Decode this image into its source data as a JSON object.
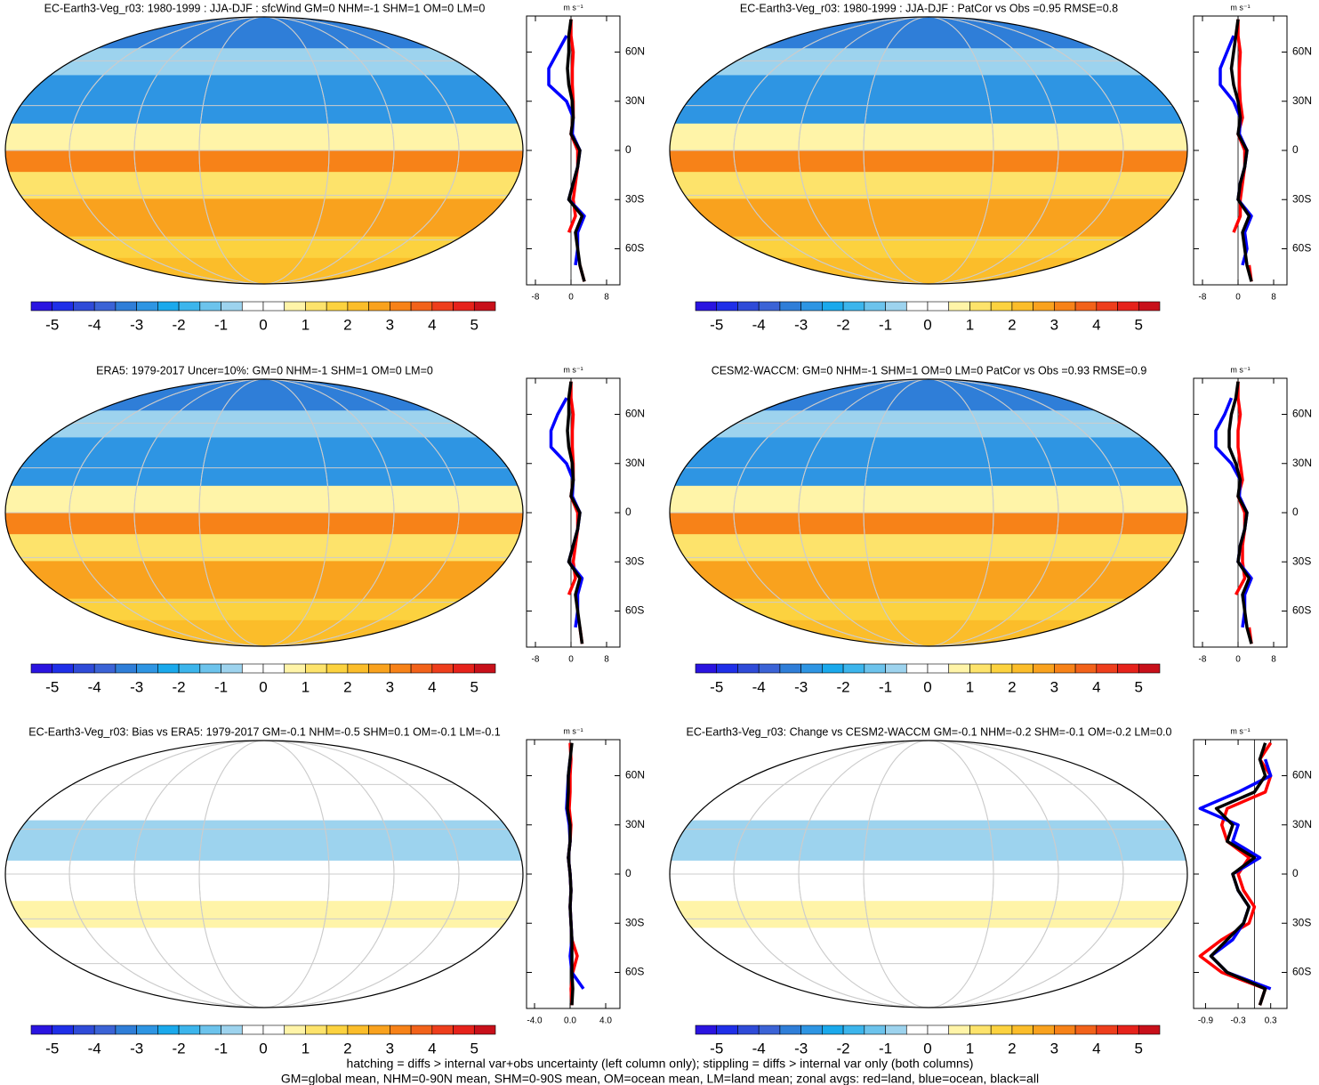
{
  "chart_data": [
    {
      "type": "map",
      "title": "EC-Earth3-Veg_r03: 1980-1999 : JJA-DJF : sfcWind GM=0 NHM=-1 SHM=1 OM=0 LM=0",
      "colorbar_lim": [
        -5.5,
        5.5
      ],
      "colorbar_ticks": [
        -5,
        -4,
        -3,
        -2,
        -1,
        0,
        1,
        2,
        3,
        4,
        5
      ],
      "colorbar_colors": [
        "#2a14e0",
        "#1f2fe8",
        "#2f4bd8",
        "#3b63d6",
        "#2f7ed8",
        "#2e95e3",
        "#1aa9ec",
        "#3cb5ec",
        "#6cc3ec",
        "#9dd3ee",
        "#ffffff",
        "#ffffff",
        "#fff4a8",
        "#fde36b",
        "#fcd23f",
        "#fbbd2a",
        "#f9a21e",
        "#f78218",
        "#f2621a",
        "#ee3e1c",
        "#e6221b",
        "#c8101a"
      ]
    },
    {
      "type": "line",
      "unit": "m s⁻¹",
      "y": [
        -80,
        -70,
        -60,
        -50,
        -40,
        -30,
        -20,
        -10,
        0,
        10,
        20,
        30,
        40,
        50,
        60,
        70,
        80
      ],
      "ylim": [
        -82,
        82
      ],
      "yticks": [
        {
          "value": 60,
          "label": "60N"
        },
        {
          "value": 30,
          "label": "30N"
        },
        0,
        {
          "value": -30,
          "label": "30S"
        },
        {
          "value": -60,
          "label": "60S"
        }
      ],
      "xlim": [
        -10,
        11
      ],
      "xticks": [
        -8,
        0,
        8
      ],
      "series": [
        {
          "color": "#ff0000",
          "values": [
            3,
            2,
            null,
            -0.5,
            1,
            0.5,
            1,
            1.5,
            1.5,
            0,
            0.5,
            0.5,
            0.3,
            0.3,
            0.5,
            0,
            0
          ]
        },
        {
          "color": "#0000ff",
          "values": [
            null,
            1,
            1.5,
            1.5,
            3,
            -0.5,
            0.5,
            1.5,
            2,
            0.3,
            0.5,
            -1,
            -5,
            -5,
            -3,
            -1,
            null
          ]
        },
        {
          "color": "#000000",
          "values": [
            3,
            2,
            1.5,
            1,
            2.5,
            -0.5,
            0.5,
            1.5,
            2,
            0,
            0.5,
            0.3,
            -0.5,
            -0.8,
            -0.5,
            -0.5,
            0
          ]
        }
      ]
    },
    {
      "type": "map",
      "title": "EC-Earth3-Veg_r03: 1980-1999 : JJA-DJF : PatCor vs Obs =0.95 RMSE=0.8",
      "colorbar_lim": [
        -5.5,
        5.5
      ],
      "colorbar_ticks": [
        -5,
        -4,
        -3,
        -2,
        -1,
        0,
        1,
        2,
        3,
        4,
        5
      ],
      "colorbar_colors": [
        "#2a14e0",
        "#1f2fe8",
        "#2f4bd8",
        "#3b63d6",
        "#2f7ed8",
        "#2e95e3",
        "#1aa9ec",
        "#3cb5ec",
        "#6cc3ec",
        "#9dd3ee",
        "#ffffff",
        "#ffffff",
        "#fff4a8",
        "#fde36b",
        "#fcd23f",
        "#fbbd2a",
        "#f9a21e",
        "#f78218",
        "#f2621a",
        "#ee3e1c",
        "#e6221b",
        "#c8101a"
      ]
    },
    {
      "type": "line",
      "unit": "m s⁻¹",
      "y": [
        -80,
        -70,
        -60,
        -50,
        -40,
        -30,
        -20,
        -10,
        0,
        10,
        20,
        30,
        40,
        50,
        60,
        70,
        80
      ],
      "ylim": [
        -82,
        82
      ],
      "yticks": [
        {
          "value": 60,
          "label": "60N"
        },
        {
          "value": 30,
          "label": "30N"
        },
        0,
        {
          "value": -30,
          "label": "30S"
        },
        {
          "value": -60,
          "label": "60S"
        }
      ],
      "xlim": [
        -10,
        11
      ],
      "xticks": [
        -8,
        0,
        8
      ],
      "series": [
        {
          "color": "#ff0000",
          "values": [
            3,
            2.5,
            null,
            -1,
            0.5,
            0.5,
            1,
            1.5,
            1.5,
            0,
            1,
            0.5,
            0.3,
            0.3,
            0.5,
            0,
            0
          ]
        },
        {
          "color": "#0000ff",
          "values": [
            null,
            1,
            2,
            1.5,
            3,
            0,
            0.5,
            1.5,
            2,
            0.3,
            0.5,
            -1,
            -4,
            -4,
            -2.5,
            -1,
            null
          ]
        },
        {
          "color": "#000000",
          "values": [
            3,
            2,
            1.5,
            1,
            2.5,
            0,
            0.5,
            1.5,
            2,
            0,
            0.5,
            0,
            -1,
            -1.5,
            -1,
            -0.5,
            0
          ]
        }
      ]
    },
    {
      "type": "map",
      "title": "ERA5: 1979-2017 Uncer=10%: GM=0 NHM=-1 SHM=1 OM=0 LM=0",
      "colorbar_lim": [
        -5.5,
        5.5
      ],
      "colorbar_ticks": [
        -5,
        -4,
        -3,
        -2,
        -1,
        0,
        1,
        2,
        3,
        4,
        5
      ],
      "colorbar_colors": [
        "#2a14e0",
        "#1f2fe8",
        "#2f4bd8",
        "#3b63d6",
        "#2f7ed8",
        "#2e95e3",
        "#1aa9ec",
        "#3cb5ec",
        "#6cc3ec",
        "#9dd3ee",
        "#ffffff",
        "#ffffff",
        "#fff4a8",
        "#fde36b",
        "#fcd23f",
        "#fbbd2a",
        "#f9a21e",
        "#f78218",
        "#f2621a",
        "#ee3e1c",
        "#e6221b",
        "#c8101a"
      ]
    },
    {
      "type": "line",
      "unit": "m s⁻¹",
      "y": [
        -80,
        -70,
        -60,
        -50,
        -40,
        -30,
        -20,
        -10,
        0,
        10,
        20,
        30,
        40,
        50,
        60,
        70,
        80
      ],
      "ylim": [
        -82,
        82
      ],
      "yticks": [
        {
          "value": 60,
          "label": "60N"
        },
        {
          "value": 30,
          "label": "30N"
        },
        0,
        {
          "value": -30,
          "label": "30S"
        },
        {
          "value": -60,
          "label": "60S"
        }
      ],
      "xlim": [
        -10,
        11
      ],
      "xticks": [
        -8,
        0,
        8
      ],
      "series": [
        {
          "color": "#ff0000",
          "values": [
            2.5,
            2,
            null,
            -0.5,
            1,
            0.5,
            1,
            1.5,
            1.5,
            0,
            0.5,
            0.5,
            0.3,
            0.3,
            0.5,
            0,
            0
          ]
        },
        {
          "color": "#0000ff",
          "values": [
            null,
            1,
            1.5,
            1.5,
            2.5,
            -0.5,
            0.5,
            1.5,
            2,
            0.3,
            0.5,
            -1,
            -4.5,
            -4.5,
            -3,
            -1,
            null
          ]
        },
        {
          "color": "#000000",
          "values": [
            2.5,
            2,
            1.5,
            1,
            2,
            -0.5,
            0.5,
            1.5,
            2,
            0,
            0.5,
            0.3,
            -0.5,
            -0.8,
            -0.5,
            -0.5,
            0
          ]
        }
      ]
    },
    {
      "type": "map",
      "title": "CESM2-WACCM: GM=0 NHM=-1 SHM=1 OM=0 LM=0 PatCor vs Obs =0.93 RMSE=0.9",
      "colorbar_lim": [
        -5.5,
        5.5
      ],
      "colorbar_ticks": [
        -5,
        -4,
        -3,
        -2,
        -1,
        0,
        1,
        2,
        3,
        4,
        5
      ],
      "colorbar_colors": [
        "#2a14e0",
        "#1f2fe8",
        "#2f4bd8",
        "#3b63d6",
        "#2f7ed8",
        "#2e95e3",
        "#1aa9ec",
        "#3cb5ec",
        "#6cc3ec",
        "#9dd3ee",
        "#ffffff",
        "#ffffff",
        "#fff4a8",
        "#fde36b",
        "#fcd23f",
        "#fbbd2a",
        "#f9a21e",
        "#f78218",
        "#f2621a",
        "#ee3e1c",
        "#e6221b",
        "#c8101a"
      ]
    },
    {
      "type": "line",
      "unit": "m s⁻¹",
      "y": [
        -80,
        -70,
        -60,
        -50,
        -40,
        -30,
        -20,
        -10,
        0,
        10,
        20,
        30,
        40,
        50,
        60,
        70,
        80
      ],
      "ylim": [
        -82,
        82
      ],
      "yticks": [
        {
          "value": 60,
          "label": "60N"
        },
        {
          "value": 30,
          "label": "30N"
        },
        0,
        {
          "value": -30,
          "label": "30S"
        },
        {
          "value": -60,
          "label": "60S"
        }
      ],
      "xlim": [
        -10,
        11
      ],
      "xticks": [
        -8,
        0,
        8
      ],
      "series": [
        {
          "color": "#ff0000",
          "values": [
            3,
            2.5,
            null,
            -0.5,
            1.5,
            1,
            1,
            1.5,
            1.5,
            0,
            1,
            0.5,
            0,
            0,
            0.5,
            0,
            0
          ]
        },
        {
          "color": "#0000ff",
          "values": [
            null,
            1,
            1.5,
            1.5,
            3,
            0,
            0.5,
            1.5,
            2,
            0.3,
            0.5,
            -1.5,
            -5,
            -5,
            -3,
            -1.5,
            null
          ]
        },
        {
          "color": "#000000",
          "values": [
            3,
            2,
            1.5,
            1,
            2.5,
            0,
            0.5,
            1.5,
            2,
            0,
            0.5,
            -0.5,
            -2,
            -2,
            -1.5,
            -0.5,
            0
          ]
        }
      ]
    },
    {
      "type": "map",
      "title": "EC-Earth3-Veg_r03: Bias vs ERA5: 1979-2017 GM=-0.1 NHM=-0.5 SHM=0.1 OM=-0.1 LM=-0.1",
      "colorbar_lim": [
        -5.5,
        5.5
      ],
      "colorbar_ticks": [
        -5,
        -4,
        -3,
        -2,
        -1,
        0,
        1,
        2,
        3,
        4,
        5
      ],
      "colorbar_colors": [
        "#2a14e0",
        "#1f2fe8",
        "#2f4bd8",
        "#3b63d6",
        "#2f7ed8",
        "#2e95e3",
        "#1aa9ec",
        "#3cb5ec",
        "#6cc3ec",
        "#9dd3ee",
        "#ffffff",
        "#ffffff",
        "#fff4a8",
        "#fde36b",
        "#fcd23f",
        "#fbbd2a",
        "#f9a21e",
        "#f78218",
        "#f2621a",
        "#ee3e1c",
        "#e6221b",
        "#c8101a"
      ]
    },
    {
      "type": "line",
      "unit": "m s⁻¹",
      "y": [
        -80,
        -70,
        -60,
        -50,
        -40,
        -30,
        -20,
        -10,
        0,
        10,
        20,
        30,
        40,
        50,
        60,
        70,
        80
      ],
      "ylim": [
        -82,
        82
      ],
      "yticks": [
        {
          "value": 60,
          "label": "60N"
        },
        {
          "value": 30,
          "label": "30N"
        },
        0,
        {
          "value": -30,
          "label": "30S"
        },
        {
          "value": -60,
          "label": "60S"
        }
      ],
      "xlim": [
        -4.9,
        5.6
      ],
      "xticks": [
        {
          "value": -4,
          "label": "-4.0"
        },
        {
          "value": 0,
          "label": "0.0"
        },
        {
          "value": 4,
          "label": "4.0"
        }
      ],
      "series": [
        {
          "color": "#ff0000",
          "values": [
            0.2,
            0.1,
            0.3,
            0.8,
            0.2,
            0.1,
            0,
            0.1,
            0,
            -0.2,
            0,
            0.1,
            -0.1,
            0,
            0,
            0.1,
            0
          ]
        },
        {
          "color": "#0000ff",
          "values": [
            null,
            1.5,
            0.2,
            0,
            0.2,
            0.1,
            0,
            0.1,
            0,
            -0.2,
            0,
            -0.1,
            -0.4,
            -0.3,
            -0.2,
            0,
            null
          ]
        },
        {
          "color": "#000000",
          "values": [
            0.2,
            0.3,
            0.2,
            0.2,
            0.2,
            0.1,
            0,
            0.1,
            0,
            -0.2,
            0,
            0,
            -0.3,
            -0.2,
            -0.2,
            0,
            0.2
          ]
        }
      ]
    },
    {
      "type": "map",
      "title": "EC-Earth3-Veg_r03: Change vs CESM2-WACCM GM=-0.1 NHM=-0.2 SHM=-0.1 OM=-0.2 LM=0.0",
      "colorbar_lim": [
        -5.5,
        5.5
      ],
      "colorbar_ticks": [
        -5,
        -4,
        -3,
        -2,
        -1,
        0,
        1,
        2,
        3,
        4,
        5
      ],
      "colorbar_colors": [
        "#2a14e0",
        "#1f2fe8",
        "#2f4bd8",
        "#3b63d6",
        "#2f7ed8",
        "#2e95e3",
        "#1aa9ec",
        "#3cb5ec",
        "#6cc3ec",
        "#9dd3ee",
        "#ffffff",
        "#ffffff",
        "#fff4a8",
        "#fde36b",
        "#fcd23f",
        "#fbbd2a",
        "#f9a21e",
        "#f78218",
        "#f2621a",
        "#ee3e1c",
        "#e6221b",
        "#c8101a"
      ]
    },
    {
      "type": "line",
      "unit": "m s⁻¹",
      "y": [
        -80,
        -70,
        -60,
        -50,
        -40,
        -30,
        -20,
        -10,
        0,
        10,
        20,
        30,
        40,
        50,
        60,
        70,
        80
      ],
      "ylim": [
        -82,
        82
      ],
      "yticks": [
        {
          "value": 60,
          "label": "60N"
        },
        {
          "value": 30,
          "label": "30N"
        },
        0,
        {
          "value": -30,
          "label": "30S"
        },
        {
          "value": -60,
          "label": "60S"
        }
      ],
      "xlim": [
        -1.12,
        0.6
      ],
      "xticks": [
        -0.9,
        -0.3,
        0.3
      ],
      "series": [
        {
          "color": "#ff0000",
          "values": [
            0.1,
            0.2,
            -0.6,
            -1.0,
            -0.6,
            -0.1,
            0,
            -0.2,
            -0.3,
            -0.1,
            -0.5,
            -0.6,
            -0.5,
            0.2,
            0.3,
            0.1,
            0.3
          ]
        },
        {
          "color": "#0000ff",
          "values": [
            null,
            0.3,
            -0.5,
            -0.8,
            -0.4,
            -0.2,
            -0.1,
            -0.3,
            -0.4,
            0.1,
            -0.4,
            -0.3,
            -1.0,
            -0.3,
            0.3,
            0.2,
            null
          ]
        },
        {
          "color": "#000000",
          "values": [
            0.1,
            0.2,
            -0.5,
            -0.8,
            -0.5,
            -0.2,
            -0.1,
            -0.3,
            -0.4,
            0,
            -0.5,
            -0.4,
            -0.7,
            0,
            0.2,
            0.1,
            0.2
          ]
        }
      ]
    }
  ],
  "notes": [
    "hatching = diffs > internal var+obs uncertainty (left column only); stippling = diffs > internal var only (both columns)",
    "GM=global mean, NHM=0-90N mean, SHM=0-90S mean, OM=ocean mean, LM=land mean; zonal avgs: red=land, blue=ocean, black=all"
  ]
}
